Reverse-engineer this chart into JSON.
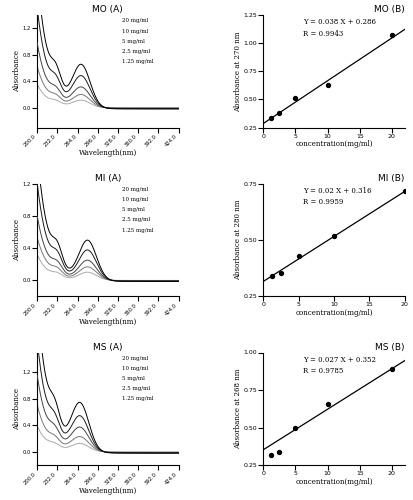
{
  "MO": {
    "title_A": "MO (A)",
    "title_B": "MO (B)",
    "ylabel_B": "Absorbance at 270 nm",
    "equation": "Y = 0.038 X + 0.286",
    "R": "R = 0.9943",
    "slope": 0.038,
    "intercept": 0.286,
    "scatter_x": [
      1.25,
      2.5,
      5,
      10,
      20
    ],
    "scatter_y": [
      0.333,
      0.381,
      0.515,
      0.632,
      1.076
    ],
    "xlim_B": [
      0,
      22
    ],
    "ylim_B": [
      0.25,
      1.25
    ],
    "yticks_B": [
      0.25,
      0.5,
      0.75,
      1.0,
      1.25
    ],
    "xticks_B": [
      0,
      5,
      10,
      15,
      20
    ],
    "ylim_A": [
      -0.3,
      1.4
    ],
    "yticks_A": [
      0.0,
      0.4,
      0.8,
      1.2
    ],
    "peak_wl": 270,
    "peak_wl2": 230,
    "amplitudes": [
      1.15,
      0.85,
      0.55,
      0.35,
      0.2
    ],
    "has_shoulder": true
  },
  "MI": {
    "title_A": "MI (A)",
    "title_B": "MI (B)",
    "ylabel_B": "Absorbance at 280 nm",
    "equation": "Y = 0.02 X + 0.316",
    "R": "R = 0.9959",
    "slope": 0.02,
    "intercept": 0.316,
    "scatter_x": [
      1.25,
      2.5,
      5,
      10,
      20
    ],
    "scatter_y": [
      0.341,
      0.355,
      0.427,
      0.519,
      0.716
    ],
    "xlim_B": [
      0,
      20
    ],
    "ylim_B": [
      0.25,
      0.75
    ],
    "yticks_B": [
      0.25,
      0.5,
      0.75
    ],
    "xticks_B": [
      0,
      5,
      10,
      15,
      20
    ],
    "ylim_A": [
      -0.2,
      1.2
    ],
    "yticks_A": [
      0.0,
      0.4,
      0.8,
      1.2
    ],
    "peak_wl": 280,
    "peak_wl2": 232,
    "amplitudes": [
      0.9,
      0.68,
      0.45,
      0.3,
      0.18
    ],
    "has_shoulder": true
  },
  "MS": {
    "title_A": "MS (A)",
    "title_B": "MS (B)",
    "ylabel_B": "Absorbance at 268 nm",
    "equation": "Y = 0.027 X + 0.352",
    "R": "R = 0.9785",
    "slope": 0.027,
    "intercept": 0.352,
    "scatter_x": [
      1.25,
      2.5,
      5,
      10,
      20
    ],
    "scatter_y": [
      0.318,
      0.34,
      0.497,
      0.655,
      0.892
    ],
    "xlim_B": [
      0,
      22
    ],
    "ylim_B": [
      0.25,
      1.0
    ],
    "yticks_B": [
      0.25,
      0.5,
      0.75,
      1.0
    ],
    "xticks_B": [
      0,
      5,
      10,
      15,
      20
    ],
    "ylim_A": [
      -0.2,
      1.5
    ],
    "yticks_A": [
      0.0,
      0.4,
      0.8,
      1.2
    ],
    "peak_wl": 268,
    "peak_wl2": 228,
    "amplitudes": [
      1.3,
      0.95,
      0.65,
      0.4,
      0.22
    ],
    "has_shoulder": true
  },
  "wavelength_range": [
    200.0,
    424.0
  ],
  "xticks_A": [
    200.0,
    232.0,
    264.0,
    296.0,
    328.0,
    360.0,
    392.0,
    424.0
  ],
  "legend_labels": [
    "20 mg/ml",
    "10 mg/ml",
    "5 mg/ml",
    "2.5 mg/ml",
    "1.25 mg/ml"
  ],
  "xlabel_B": "concentration(mg/ml)",
  "xlabel_A": "Wavelength(nm)",
  "ylabel_A": "Absorbance",
  "background_color": "#ffffff",
  "scatter_color": "#000000",
  "fit_color": "#000000",
  "line_colors": [
    "#000000",
    "#1a1a1a",
    "#444444",
    "#777777",
    "#aaaaaa"
  ]
}
